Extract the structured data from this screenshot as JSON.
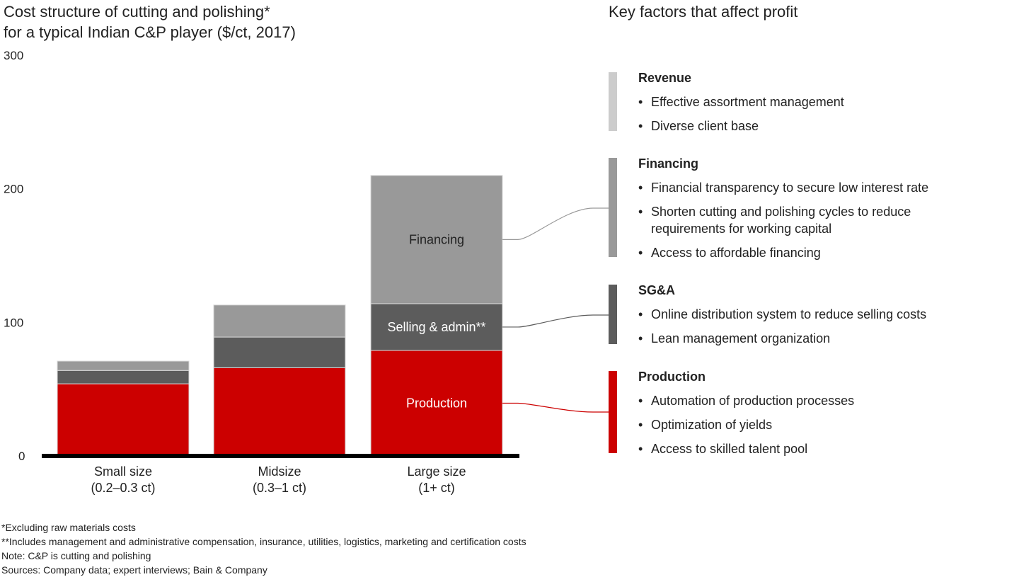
{
  "title_line1": "Cost structure of cutting and polishing*",
  "title_line2": "for a typical Indian C&P player ($/ct, 2017)",
  "right_title": "Key factors that affect profit",
  "chart_data": {
    "type": "bar",
    "stacked": true,
    "title": "Cost structure of cutting and polishing* for a typical Indian C&P player ($/ct, 2017)",
    "xlabel": "",
    "ylabel": "$/ct",
    "ylim": [
      0,
      300
    ],
    "yticks": [
      0,
      100,
      200,
      300
    ],
    "grid": false,
    "categories": [
      "Small size (0.2–0.3 ct)",
      "Midsize (0.3–1 ct)",
      "Large size (1+ ct)"
    ],
    "category_lines": [
      [
        "Small size",
        "(0.2–0.3 ct)"
      ],
      [
        "Midsize",
        "(0.3–1 ct)"
      ],
      [
        "Large size",
        "(1+ ct)"
      ]
    ],
    "series": [
      {
        "name": "Production",
        "color": "#CC0000",
        "values": [
          54,
          66,
          79
        ]
      },
      {
        "name": "Selling & admin**",
        "color": "#5C5C5C",
        "values": [
          10,
          23,
          35
        ]
      },
      {
        "name": "Financing",
        "color": "#999999",
        "values": [
          7,
          24,
          96
        ]
      }
    ],
    "segment_labels_on_bar": "Large size (1+ ct)"
  },
  "factors": [
    {
      "name": "Revenue",
      "color": "#CCCCCC",
      "items": [
        "Effective assortment management",
        "Diverse client base"
      ]
    },
    {
      "name": "Financing",
      "color": "#999999",
      "items": [
        "Financial transparency to secure low interest rate",
        "Shorten cutting and polishing cycles to reduce\nrequirements for working capital",
        "Access to affordable financing"
      ]
    },
    {
      "name": "SG&A",
      "color": "#5C5C5C",
      "items": [
        "Online distribution system to reduce selling costs",
        "Lean management organization"
      ]
    },
    {
      "name": "Production",
      "color": "#CC0000",
      "items": [
        "Automation of production processes",
        "Optimization of yields",
        "Access to skilled talent pool"
      ]
    }
  ],
  "bullet": "•",
  "notes": [
    "*Excluding raw materials costs",
    "**Includes management and administrative compensation, insurance, utilities, logistics, marketing and certification costs",
    "Note: C&P is cutting and polishing",
    "Sources: Company data; expert interviews; Bain & Company"
  ]
}
